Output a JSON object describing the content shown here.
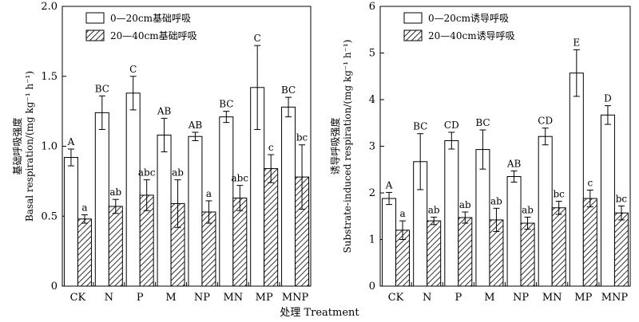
{
  "xlabel": "处理 Treatment",
  "chart_data": [
    {
      "type": "bar",
      "categories": [
        "CK",
        "N",
        "P",
        "M",
        "NP",
        "MN",
        "MP",
        "MNP"
      ],
      "ylabel": "基础呼吸强度\nBasal respiration/(mg kg⁻¹ h⁻¹)",
      "ylim": [
        0,
        2.0
      ],
      "yticks": [
        "0",
        "0.5",
        "1.0",
        "1.5",
        "2.0"
      ],
      "ytick_values": [
        0,
        0.5,
        1.0,
        1.5,
        2.0
      ],
      "legend_position": "top-left",
      "series": [
        {
          "name": "0—20cm基础呼吸",
          "pattern": "white",
          "values": [
            0.92,
            1.24,
            1.38,
            1.08,
            1.07,
            1.21,
            1.42,
            1.28
          ],
          "errors": [
            0.06,
            0.12,
            0.12,
            0.12,
            0.03,
            0.04,
            0.3,
            0.07
          ],
          "labels": [
            "A",
            "BC",
            "C",
            "AB",
            "AB",
            "BC",
            "C",
            "BC"
          ]
        },
        {
          "name": "20—40cm基础呼吸",
          "pattern": "hatched",
          "values": [
            0.48,
            0.57,
            0.65,
            0.59,
            0.53,
            0.63,
            0.84,
            0.78
          ],
          "errors": [
            0.03,
            0.05,
            0.11,
            0.17,
            0.08,
            0.09,
            0.1,
            0.23
          ],
          "labels": [
            "a",
            "ab",
            "abc",
            "ab",
            "a",
            "abc",
            "c",
            "bc"
          ]
        }
      ]
    },
    {
      "type": "bar",
      "categories": [
        "CK",
        "N",
        "P",
        "M",
        "NP",
        "MN",
        "MP",
        "MNP"
      ],
      "ylabel": "诱导呼吸强度\nSubstrate-induced respiration/(mg kg⁻¹ h⁻¹)",
      "ylim": [
        0,
        6
      ],
      "yticks": [
        "0",
        "1",
        "2",
        "3",
        "4",
        "5",
        "6"
      ],
      "ytick_values": [
        0,
        1,
        2,
        3,
        4,
        5,
        6
      ],
      "legend_position": "top-left",
      "series": [
        {
          "name": "0—20cm诱导呼吸",
          "pattern": "white",
          "values": [
            1.88,
            2.67,
            3.12,
            2.93,
            2.35,
            3.21,
            4.57,
            3.67
          ],
          "errors": [
            0.13,
            0.6,
            0.18,
            0.42,
            0.12,
            0.18,
            0.5,
            0.2
          ],
          "labels": [
            "A",
            "BC",
            "CD",
            "BC",
            "AB",
            "CD",
            "E",
            "D"
          ]
        },
        {
          "name": "20—40cm诱导呼吸",
          "pattern": "hatched",
          "values": [
            1.2,
            1.4,
            1.47,
            1.42,
            1.35,
            1.68,
            1.88,
            1.57
          ],
          "errors": [
            0.2,
            0.08,
            0.12,
            0.25,
            0.13,
            0.14,
            0.18,
            0.15
          ],
          "labels": [
            "a",
            "ab",
            "ab",
            "ab",
            "ab",
            "bc",
            "c",
            "bc"
          ]
        }
      ]
    }
  ]
}
